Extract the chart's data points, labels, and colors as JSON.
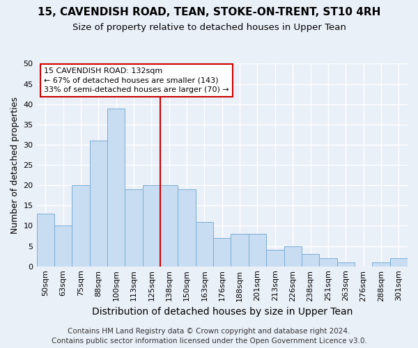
{
  "title1": "15, CAVENDISH ROAD, TEAN, STOKE-ON-TRENT, ST10 4RH",
  "title2": "Size of property relative to detached houses in Upper Tean",
  "xlabel": "Distribution of detached houses by size in Upper Tean",
  "ylabel": "Number of detached properties",
  "bins": [
    "50sqm",
    "63sqm",
    "75sqm",
    "88sqm",
    "100sqm",
    "113sqm",
    "125sqm",
    "138sqm",
    "150sqm",
    "163sqm",
    "176sqm",
    "188sqm",
    "201sqm",
    "213sqm",
    "226sqm",
    "238sqm",
    "251sqm",
    "263sqm",
    "276sqm",
    "288sqm",
    "301sqm"
  ],
  "values": [
    13,
    10,
    20,
    31,
    39,
    19,
    20,
    20,
    19,
    11,
    7,
    8,
    8,
    4,
    5,
    3,
    2,
    1,
    0,
    1,
    2
  ],
  "bar_color": "#c9ddf2",
  "bar_edge_color": "#7aadd4",
  "property_bin_index": 7,
  "annotation_title": "15 CAVENDISH ROAD: 132sqm",
  "annotation_line1": "← 67% of detached houses are smaller (143)",
  "annotation_line2": "33% of semi-detached houses are larger (70) →",
  "annotation_box_facecolor": "#ffffff",
  "annotation_box_edgecolor": "#cc0000",
  "vline_color": "#cc0000",
  "ylim": [
    0,
    50
  ],
  "yticks": [
    0,
    5,
    10,
    15,
    20,
    25,
    30,
    35,
    40,
    45,
    50
  ],
  "footer1": "Contains HM Land Registry data © Crown copyright and database right 2024.",
  "footer2": "Contains public sector information licensed under the Open Government Licence v3.0.",
  "background_color": "#eaf0f8",
  "grid_color": "#ffffff",
  "title_fontsize": 11,
  "subtitle_fontsize": 9.5,
  "ylabel_fontsize": 9,
  "xlabel_fontsize": 10,
  "tick_fontsize": 8,
  "annotation_fontsize": 8,
  "footer_fontsize": 7.5
}
